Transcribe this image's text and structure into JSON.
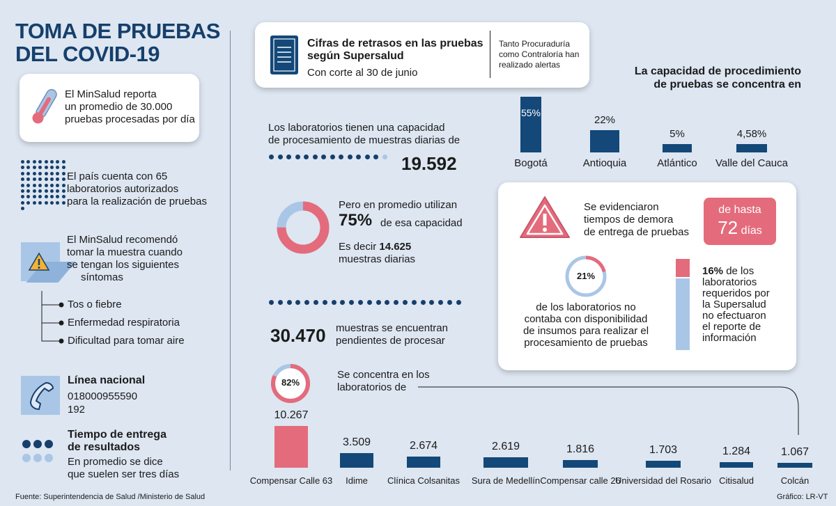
{
  "title_line1": "TOMA DE PRUEBAS",
  "title_line2": "DEL COVID-19",
  "minsalud_card": {
    "line1": "El MinSalud reporta",
    "line2": "un promedio de 30.000",
    "line3": "pruebas procesadas por día"
  },
  "labs_authorized": {
    "line1": "El país cuenta con 65",
    "line2": "laboratorios autorizados",
    "line3": "para la realización de pruebas"
  },
  "recommend": {
    "line1": "El MinSalud recomendó",
    "line2": "tomar la muestra cuando",
    "line3": "se tengan los siguientes",
    "line4": "síntomas"
  },
  "symptoms": [
    "Tos o fiebre",
    "Enfermedad respiratoria",
    "Dificultad para tomar aire"
  ],
  "hotline": {
    "title": "Línea nacional",
    "number1": "018000955590",
    "number2": "192"
  },
  "delivery": {
    "title1": "Tiempo de entrega",
    "title2": "de resultados",
    "text1": "En promedio se dice",
    "text2": "que suelen ser tres días"
  },
  "source": "Fuente: Superintendencia de Salud /Ministerio de Salud",
  "credit": "Gráfico: LR-VT",
  "header_card": {
    "title1": "Cifras de retrasos en las pruebas",
    "title2": "según Supersalud",
    "subtitle": "Con corte al 30 de junio",
    "aside1": "Tanto Procuraduría",
    "aside2": "como Contraloría han",
    "aside3": "realizado alertas"
  },
  "capacity": {
    "text1": "Los laboratorios tienen una capacidad",
    "text2": "de procesamiento de muestras diarias de",
    "value": "19.592"
  },
  "usage": {
    "text1": "Pero en promedio utilizan",
    "percent": "75%",
    "text2": "de esa capacidad",
    "text3a": "Es decir",
    "text3b": "14.625",
    "text4": "muestras diarias"
  },
  "pending": {
    "value": "30.470",
    "text1": "muestras se encuentran",
    "text2": "pendientes de procesar"
  },
  "concentration": {
    "percent": "82%",
    "text1": "Se concentra en los",
    "text2": "laboratorios de"
  },
  "regions_title1": "La capacidad de procedimiento",
  "regions_title2": "de pruebas se concentra en",
  "alert_card": {
    "text1": "Se evidenciaron",
    "text2": "tiempos de demora",
    "text3": "de entrega de pruebas",
    "badge1": "de hasta",
    "badge2": "72",
    "badge3": "días",
    "pct21": "21%",
    "labs1": "de los laboratorios no",
    "labs2": "contaba con disponibilidad",
    "labs3": "de insumos para realizar el",
    "labs4": "procesamiento de pruebas",
    "pct16": "16%",
    "rep1": "de los",
    "rep2": "laboratorios",
    "rep3": "requeridos por",
    "rep4": "la Supersalud",
    "rep5": "no efectuaron",
    "rep6": "el reporte de",
    "rep7": "información"
  },
  "chart_data": [
    {
      "type": "bar",
      "title": "La capacidad de procedimiento de pruebas se concentra en",
      "categories": [
        "Bogotá",
        "Antioquia",
        "Atlántico",
        "Valle del Cauca"
      ],
      "values": [
        55,
        22,
        5,
        4.58
      ],
      "labels": [
        "55%",
        "22%",
        "5%",
        "4,58%"
      ]
    },
    {
      "type": "bar",
      "title": "",
      "categories": [
        "Compensar Calle 63",
        "Idime",
        "Clínica Colsanitas",
        "Sura de Medellín",
        "Compensar calle 26",
        "Universidad del Rosario",
        "Citisalud",
        "Colcán"
      ],
      "values": [
        10267,
        3509,
        2674,
        2619,
        1816,
        1703,
        1284,
        1067
      ],
      "labels": [
        "10.267",
        "3.509",
        "2.674",
        "2.619",
        "1.816",
        "1.703",
        "1.284",
        "1.067"
      ]
    }
  ],
  "colors": {
    "navy": "#163f6b",
    "pink": "#e46b7c",
    "light_blue": "#a9c6e6",
    "background": "#dde6f1"
  }
}
